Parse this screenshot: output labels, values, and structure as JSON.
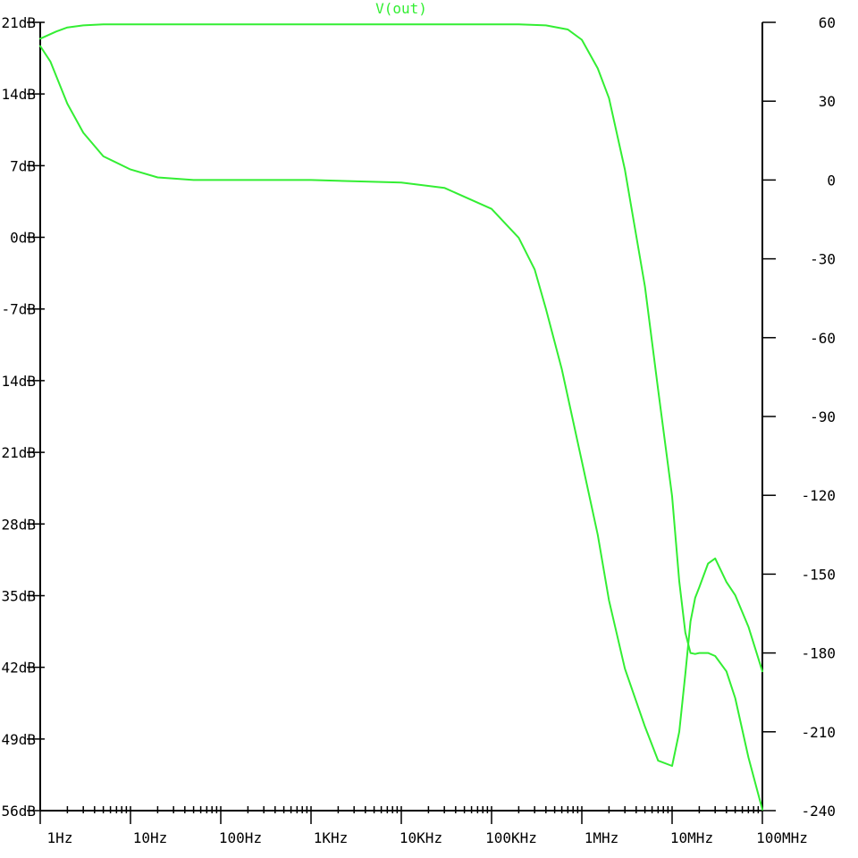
{
  "chart_data": {
    "type": "line",
    "title": "V(out)",
    "x_scale": "log",
    "x_range_hz": [
      1,
      100000000
    ],
    "x_ticks": [
      {
        "value": 1,
        "label": "1Hz"
      },
      {
        "value": 10,
        "label": "10Hz"
      },
      {
        "value": 100,
        "label": "100Hz"
      },
      {
        "value": 1000,
        "label": "1KHz"
      },
      {
        "value": 10000,
        "label": "10KHz"
      },
      {
        "value": 100000,
        "label": "100KHz"
      },
      {
        "value": 1000000,
        "label": "1MHz"
      },
      {
        "value": 10000000,
        "label": "10MHz"
      },
      {
        "value": 100000000,
        "label": "100MHz"
      }
    ],
    "y_left": {
      "unit": "dB",
      "range": [
        -56,
        21
      ],
      "ticks": [
        {
          "value": 21,
          "label": "21dB"
        },
        {
          "value": 14,
          "label": "14dB"
        },
        {
          "value": 7,
          "label": "7dB"
        },
        {
          "value": 0,
          "label": "0dB"
        },
        {
          "value": -7,
          "label": "-7dB"
        },
        {
          "value": -14,
          "label": "-14dB"
        },
        {
          "value": -21,
          "label": "-21dB"
        },
        {
          "value": -28,
          "label": "-28dB"
        },
        {
          "value": -35,
          "label": "-35dB"
        },
        {
          "value": -42,
          "label": "-42dB"
        },
        {
          "value": -49,
          "label": "-49dB"
        },
        {
          "value": -56,
          "label": "-56dB"
        }
      ]
    },
    "y_right": {
      "unit": "deg",
      "range": [
        -240,
        60
      ],
      "ticks": [
        {
          "value": 60,
          "label": "60"
        },
        {
          "value": 30,
          "label": "30"
        },
        {
          "value": 0,
          "label": "0"
        },
        {
          "value": -30,
          "label": "-30"
        },
        {
          "value": -60,
          "label": "-60"
        },
        {
          "value": -90,
          "label": "-90"
        },
        {
          "value": -120,
          "label": "-120"
        },
        {
          "value": -150,
          "label": "-150"
        },
        {
          "value": -180,
          "label": "-180"
        },
        {
          "value": -210,
          "label": "-210"
        },
        {
          "value": -240,
          "label": "-240"
        }
      ]
    },
    "grid": false,
    "color": "#33ee33",
    "series": [
      {
        "axis": "left",
        "x": [
          1,
          1.5,
          2,
          3,
          5,
          10,
          100,
          1000,
          10000,
          100000,
          200000,
          400000,
          700000,
          1000000,
          1500000,
          2000000,
          3000000,
          5000000,
          7000000,
          10000000,
          12000000,
          14000000,
          16000000,
          18000000,
          20000000,
          25000000,
          30000000,
          40000000,
          50000000,
          70000000,
          100000000
        ],
        "y": [
          19.4,
          20.1,
          20.5,
          20.7,
          20.8,
          20.8,
          20.8,
          20.8,
          20.8,
          20.8,
          20.8,
          20.7,
          20.3,
          19.3,
          16.5,
          13.6,
          6.6,
          -4.8,
          -14.9,
          -25.3,
          -33.6,
          -38.6,
          -40.6,
          -40.7,
          -40.6,
          -40.6,
          -40.9,
          -42.4,
          -45,
          -50.8,
          -55.9
        ]
      },
      {
        "axis": "right",
        "x": [
          1,
          1.3,
          1.7,
          2,
          3,
          5,
          10,
          20,
          50,
          100,
          1000,
          10000,
          30000,
          100000,
          200000,
          300000,
          400000,
          600000,
          1000000,
          1500000,
          2000000,
          3000000,
          5000000,
          7000000,
          10000000,
          12000000,
          14000000,
          16000000,
          18000000,
          20000000,
          25000000,
          30000000,
          40000000,
          50000000,
          70000000,
          100000000
        ],
        "y": [
          51,
          45,
          35,
          29,
          18,
          9,
          4,
          1,
          0,
          0,
          0,
          -1,
          -3,
          -11,
          -22,
          -34,
          -49,
          -72,
          -107,
          -135,
          -160,
          -186,
          -208,
          -221,
          -223,
          -210,
          -188,
          -168,
          -159,
          -155,
          -146,
          -144,
          -153,
          -158,
          -170,
          -187
        ]
      }
    ]
  }
}
